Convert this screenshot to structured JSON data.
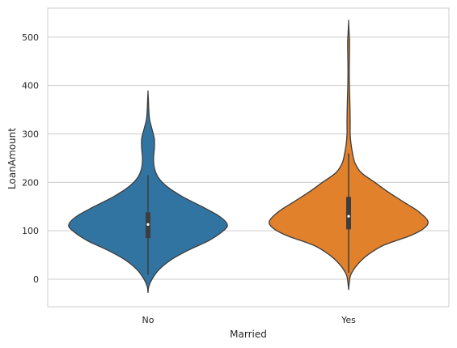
{
  "chart_data": {
    "type": "violin",
    "xlabel": "Married",
    "ylabel": "LoanAmount",
    "categories": [
      "No",
      "Yes"
    ],
    "ylim": [
      -57,
      560
    ],
    "yticks": [
      0,
      100,
      200,
      300,
      400,
      500
    ],
    "grid": "horizontal",
    "colors": {
      "No": "#3274a1",
      "Yes": "#e1812c",
      "outline": "#3d3d3d",
      "grid": "#cccccc",
      "frame": "#cccccc"
    },
    "violins": [
      {
        "category": "No",
        "range": [
          -28,
          387
        ],
        "box": {
          "q1": 85,
          "median": 113,
          "q3": 138,
          "whisker_low": 9,
          "whisker_high": 215
        },
        "density": [
          {
            "y": -28,
            "w": 0.0
          },
          {
            "y": -15,
            "w": 0.01
          },
          {
            "y": 0,
            "w": 0.05
          },
          {
            "y": 20,
            "w": 0.14
          },
          {
            "y": 40,
            "w": 0.29
          },
          {
            "y": 60,
            "w": 0.51
          },
          {
            "y": 80,
            "w": 0.77
          },
          {
            "y": 100,
            "w": 0.95
          },
          {
            "y": 113,
            "w": 1.0
          },
          {
            "y": 130,
            "w": 0.9
          },
          {
            "y": 150,
            "w": 0.68
          },
          {
            "y": 170,
            "w": 0.44
          },
          {
            "y": 190,
            "w": 0.25
          },
          {
            "y": 210,
            "w": 0.13
          },
          {
            "y": 230,
            "w": 0.08
          },
          {
            "y": 250,
            "w": 0.07
          },
          {
            "y": 270,
            "w": 0.08
          },
          {
            "y": 290,
            "w": 0.08
          },
          {
            "y": 310,
            "w": 0.05
          },
          {
            "y": 330,
            "w": 0.02
          },
          {
            "y": 350,
            "w": 0.01
          },
          {
            "y": 370,
            "w": 0.005
          },
          {
            "y": 387,
            "w": 0.0
          }
        ]
      },
      {
        "category": "Yes",
        "range": [
          -22,
          532
        ],
        "box": {
          "q1": 103,
          "median": 130,
          "q3": 170,
          "whisker_low": 13,
          "whisker_high": 260
        },
        "density": [
          {
            "y": -22,
            "w": 0.0
          },
          {
            "y": -5,
            "w": 0.01
          },
          {
            "y": 10,
            "w": 0.03
          },
          {
            "y": 30,
            "w": 0.11
          },
          {
            "y": 50,
            "w": 0.24
          },
          {
            "y": 70,
            "w": 0.44
          },
          {
            "y": 90,
            "w": 0.78
          },
          {
            "y": 105,
            "w": 0.95
          },
          {
            "y": 120,
            "w": 1.0
          },
          {
            "y": 140,
            "w": 0.88
          },
          {
            "y": 160,
            "w": 0.69
          },
          {
            "y": 180,
            "w": 0.5
          },
          {
            "y": 200,
            "w": 0.33
          },
          {
            "y": 220,
            "w": 0.16
          },
          {
            "y": 240,
            "w": 0.08
          },
          {
            "y": 260,
            "w": 0.05
          },
          {
            "y": 280,
            "w": 0.03
          },
          {
            "y": 300,
            "w": 0.02
          },
          {
            "y": 330,
            "w": 0.02
          },
          {
            "y": 370,
            "w": 0.015
          },
          {
            "y": 400,
            "w": 0.01
          },
          {
            "y": 430,
            "w": 0.008
          },
          {
            "y": 460,
            "w": 0.01
          },
          {
            "y": 490,
            "w": 0.012
          },
          {
            "y": 510,
            "w": 0.006
          },
          {
            "y": 532,
            "w": 0.0
          }
        ]
      }
    ]
  }
}
